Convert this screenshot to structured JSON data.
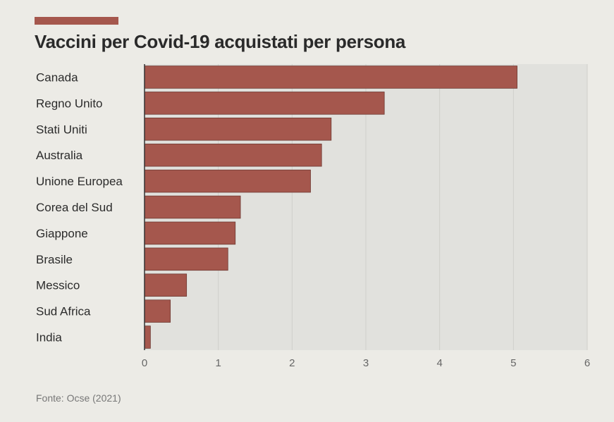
{
  "source": "Fonte: Ocse (2021)",
  "colors": {
    "bar": "#a5574d",
    "bar_stroke": "#6e3a33",
    "plot_bg": "#e1e1dd",
    "grid": "#cfcfca",
    "axis": "#333333"
  },
  "chart_data": {
    "type": "bar",
    "orientation": "horizontal",
    "title": "Vaccini per Covid-19 acquistati per persona",
    "xlabel": "",
    "ylabel": "",
    "xlim": [
      0,
      6
    ],
    "xticks": [
      "0",
      "1",
      "2",
      "3",
      "4",
      "5",
      "6"
    ],
    "grid": true,
    "categories": [
      "Canada",
      "Regno Unito",
      "Stati Uniti",
      "Australia",
      "Unione Europea",
      "Corea del Sud",
      "Giappone",
      "Brasile",
      "Messico",
      "Sud Africa",
      "India"
    ],
    "values": [
      5.05,
      3.25,
      2.53,
      2.4,
      2.25,
      1.3,
      1.23,
      1.13,
      0.57,
      0.35,
      0.08
    ]
  }
}
